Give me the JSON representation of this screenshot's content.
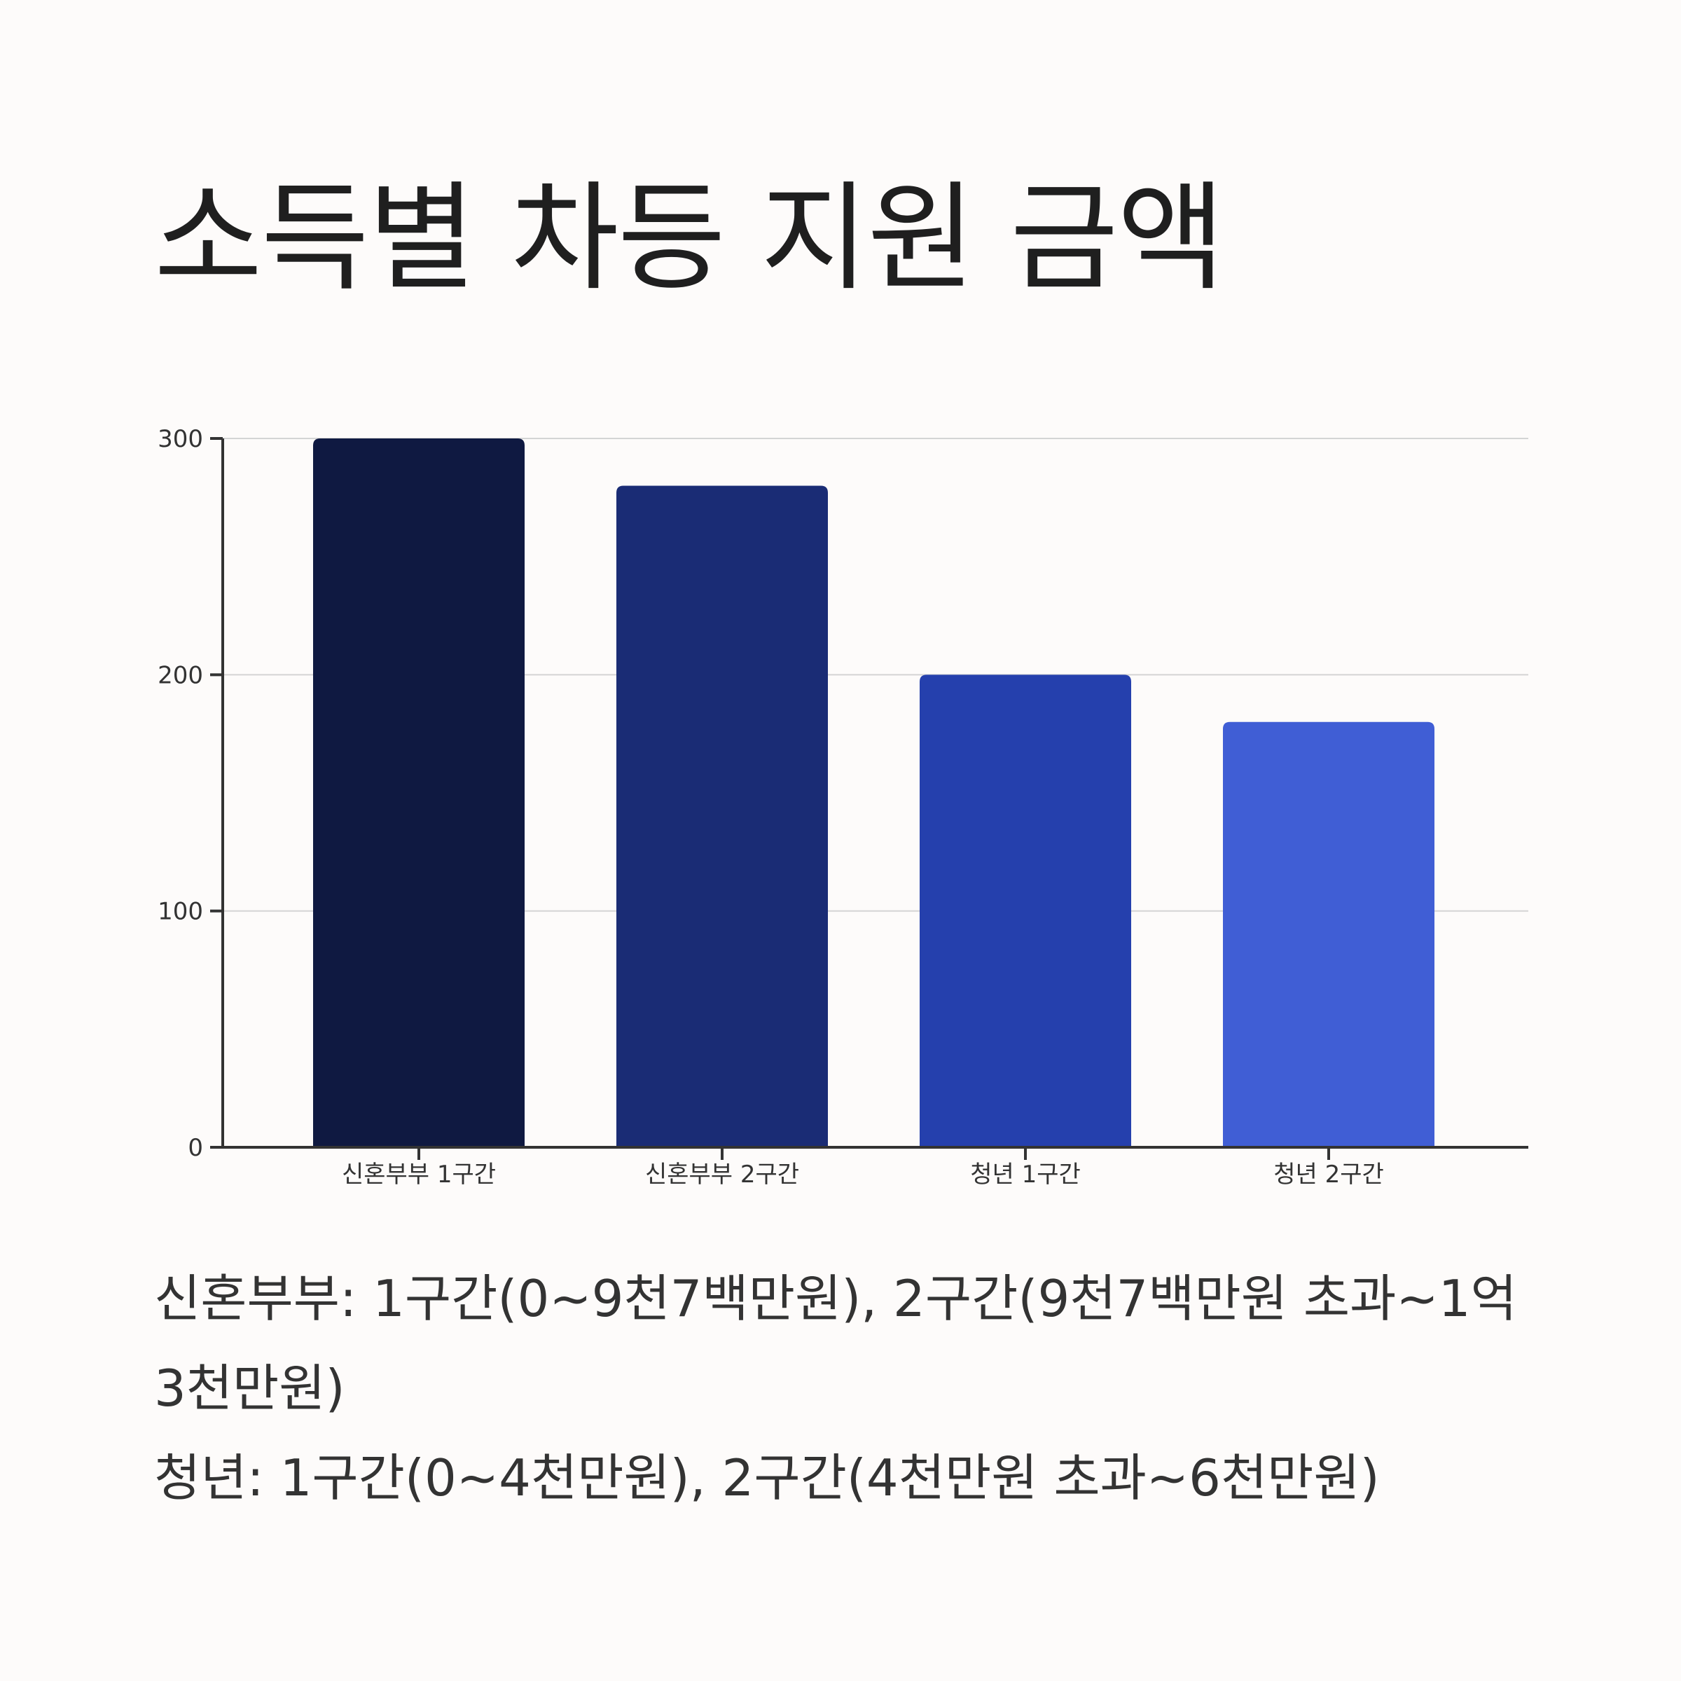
{
  "title": "소득별 차등 지원 금액",
  "notes": [
    "신혼부부: 1구간(0~9천7백만원), 2구간(9천7백만원 초과~1억3천만원)",
    "청년: 1구간(0~4천만원), 2구간(4천만원 초과~6천만원)"
  ],
  "colors": {
    "background": "#fdfbfa",
    "axis": "#333333",
    "grid": "#d4d4d4",
    "text": "#1f1f1f"
  },
  "chart_data": {
    "type": "bar",
    "title": "",
    "xlabel": "",
    "ylabel": "",
    "ylim": [
      0,
      300
    ],
    "yticks": [
      0,
      100,
      200,
      300
    ],
    "grid": true,
    "categories": [
      "신혼부부 1구간",
      "신혼부부 2구간",
      "청년 1구간",
      "청년 2구간"
    ],
    "values": [
      300,
      280,
      200,
      180
    ],
    "bar_colors": [
      "#0f1941",
      "#1a2c75",
      "#2540ad",
      "#405ed5"
    ]
  }
}
